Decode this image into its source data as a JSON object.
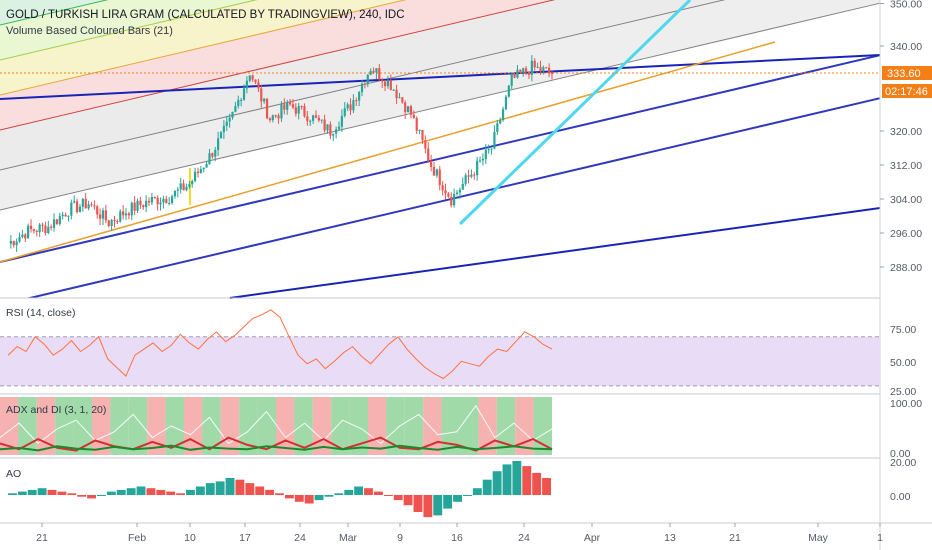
{
  "header": {
    "title": "GOLD / TURKISH LIRA GRAM (CALCULATED BY TRADINGVIEW), 240, IDC",
    "indicator": "Volume Based Coloured Bars (21)"
  },
  "price_badges": {
    "last_price": "333.60",
    "countdown": "02:17:46"
  },
  "colors": {
    "up": "#26a69a",
    "down": "#ef5350",
    "price_badge": "#f57f17",
    "trend_blue": "#1a23b8",
    "trend_cyan": "#4dd8ee",
    "trend_orange": "#e8a02a",
    "rsi": "#ff7043",
    "rsi_band": "#e7d8f7",
    "adx_green": "#1b8a2e",
    "adx_red": "#d32f2f",
    "adx_bg_green": "#8fd49a",
    "adx_bg_red": "#f5a3a3"
  },
  "panes": {
    "rsi": {
      "title": "RSI (14, close)",
      "ticks": [
        "75.00",
        "50.00",
        "25.00"
      ]
    },
    "adx": {
      "title": "ADX and DI (3, 1, 20)",
      "ticks": [
        "100.00",
        "0.00"
      ]
    },
    "ao": {
      "title": "AO",
      "ticks": [
        "20.00",
        "0.00"
      ]
    }
  },
  "chart_data": [
    {
      "type": "candlestick",
      "pane": "price",
      "title": "GOLD / TURKISH LIRA GRAM (CALCULATED BY TRADINGVIEW), 240, IDC",
      "y_ticks": [
        288,
        296,
        304,
        312,
        320,
        328,
        340,
        350
      ],
      "y_tick_labels": [
        "288.00",
        "296.00",
        "304.00",
        "312.00",
        "320.00",
        "",
        "340.00",
        "350.00"
      ],
      "x_tick_labels": [
        "21",
        "Feb",
        "10",
        "17",
        "24",
        "Mar",
        "9",
        "16",
        "24",
        "Apr",
        "13",
        "21",
        "May",
        "1"
      ],
      "last_price": 333.6,
      "close_path": [
        {
          "date": "Jan 16",
          "close": 293.5
        },
        {
          "date": "Jan 21",
          "close": 296.5
        },
        {
          "date": "Jan 24",
          "close": 297.5
        },
        {
          "date": "Jan 28",
          "close": 301.5
        },
        {
          "date": "Jan 31",
          "close": 303.0
        },
        {
          "date": "Feb 4",
          "close": 298.5
        },
        {
          "date": "Feb 7",
          "close": 301.5
        },
        {
          "date": "Feb 10",
          "close": 303.5
        },
        {
          "date": "Feb 13",
          "close": 304.5
        },
        {
          "date": "Feb 17",
          "close": 307.5
        },
        {
          "date": "Feb 19",
          "close": 314.0
        },
        {
          "date": "Feb 21",
          "close": 322.0
        },
        {
          "date": "Feb 24",
          "close": 334.0
        },
        {
          "date": "Feb 25",
          "close": 323.0
        },
        {
          "date": "Feb 27",
          "close": 326.0
        },
        {
          "date": "Mar 2",
          "close": 323.5
        },
        {
          "date": "Mar 4",
          "close": 320.0
        },
        {
          "date": "Mar 6",
          "close": 326.0
        },
        {
          "date": "Mar 9",
          "close": 335.0
        },
        {
          "date": "Mar 11",
          "close": 331.0
        },
        {
          "date": "Mar 13",
          "close": 324.0
        },
        {
          "date": "Mar 15",
          "close": 312.0
        },
        {
          "date": "Mar 17",
          "close": 304.0
        },
        {
          "date": "Mar 19",
          "close": 310.0
        },
        {
          "date": "Mar 21",
          "close": 316.0
        },
        {
          "date": "Mar 23",
          "close": 332.0
        },
        {
          "date": "Mar 25",
          "close": 335.0
        },
        {
          "date": "Mar 27",
          "close": 333.6
        }
      ]
    },
    {
      "type": "line",
      "pane": "rsi",
      "title": "RSI (14, close)",
      "ylim": [
        25,
        100
      ],
      "guides": [
        70,
        30
      ],
      "values": [
        55,
        62,
        58,
        70,
        64,
        55,
        60,
        67,
        58,
        63,
        70,
        52,
        45,
        38,
        55,
        60,
        65,
        58,
        63,
        72,
        65,
        60,
        68,
        74,
        66,
        71,
        78,
        85,
        88,
        92,
        86,
        70,
        55,
        48,
        52,
        44,
        50,
        57,
        62,
        54,
        48,
        56,
        64,
        70,
        60,
        52,
        45,
        40,
        36,
        42,
        50,
        48,
        46,
        54,
        60,
        58,
        66,
        74,
        70,
        64,
        60
      ]
    },
    {
      "type": "line",
      "pane": "adx",
      "title": "ADX and DI (3, 1, 20)",
      "ylim": [
        0,
        100
      ],
      "series": [
        {
          "name": "DI+",
          "values": [
            30,
            55,
            20,
            45,
            60,
            25,
            40,
            70,
            30,
            50,
            35,
            65,
            20,
            40,
            75,
            30,
            55,
            25,
            60,
            45,
            20,
            50,
            70,
            35,
            40,
            85,
            30,
            55,
            25,
            45
          ]
        },
        {
          "name": "DI-",
          "values": [
            40,
            20,
            55,
            25,
            15,
            50,
            30,
            20,
            45,
            25,
            55,
            20,
            60,
            35,
            20,
            50,
            25,
            55,
            20,
            40,
            60,
            25,
            20,
            45,
            35,
            15,
            50,
            30,
            55,
            20
          ]
        },
        {
          "name": "ADX",
          "values": [
            10,
            12,
            8,
            15,
            11,
            9,
            14,
            10,
            12,
            16,
            9,
            13,
            11,
            10,
            15,
            12,
            9,
            14,
            10,
            13,
            11,
            16,
            12,
            9,
            14,
            10,
            12,
            15,
            11,
            10
          ]
        }
      ]
    },
    {
      "type": "bar",
      "pane": "ao",
      "title": "AO",
      "ylim": [
        -20,
        20
      ],
      "values": [
        1,
        2,
        3,
        4,
        3,
        2,
        1,
        -1,
        -2,
        0,
        2,
        3,
        4,
        5,
        4,
        3,
        2,
        1,
        3,
        5,
        7,
        8,
        10,
        9,
        7,
        5,
        3,
        1,
        -2,
        -4,
        -5,
        -3,
        -1,
        1,
        3,
        5,
        4,
        2,
        0,
        -3,
        -6,
        -10,
        -13,
        -12,
        -8,
        -4,
        0,
        4,
        9,
        14,
        18,
        20,
        17,
        13,
        10
      ]
    }
  ]
}
